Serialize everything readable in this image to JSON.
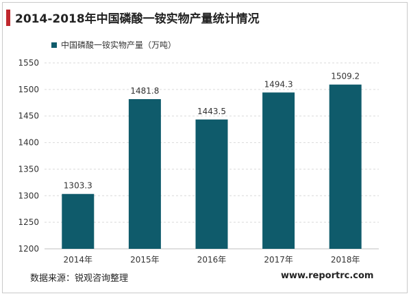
{
  "title": "2014-2018年中国磷酸一铵实物产量统计情况",
  "source": "数据来源：锐观咨询整理",
  "website": "www.reportrc.com",
  "colors": {
    "bar": "#0f5b6b",
    "accent": "#c0282e",
    "grid": "#d9d9d9"
  },
  "chart_data": {
    "type": "bar",
    "categories": [
      "2014年",
      "2015年",
      "2016年",
      "2017年",
      "2018年"
    ],
    "series": [
      {
        "name": "中国磷酸一铵实物产量（万吨）",
        "values": [
          1303.3,
          1481.8,
          1443.5,
          1494.3,
          1509.2
        ]
      }
    ],
    "data_labels": [
      "1303.3",
      "1481.8",
      "1443.5",
      "1494.3",
      "1509.2"
    ],
    "yticks": [
      1200,
      1250,
      1300,
      1350,
      1400,
      1450,
      1500,
      1550
    ],
    "ylim": [
      1200,
      1550
    ],
    "grid": true,
    "legend": "top-left"
  }
}
